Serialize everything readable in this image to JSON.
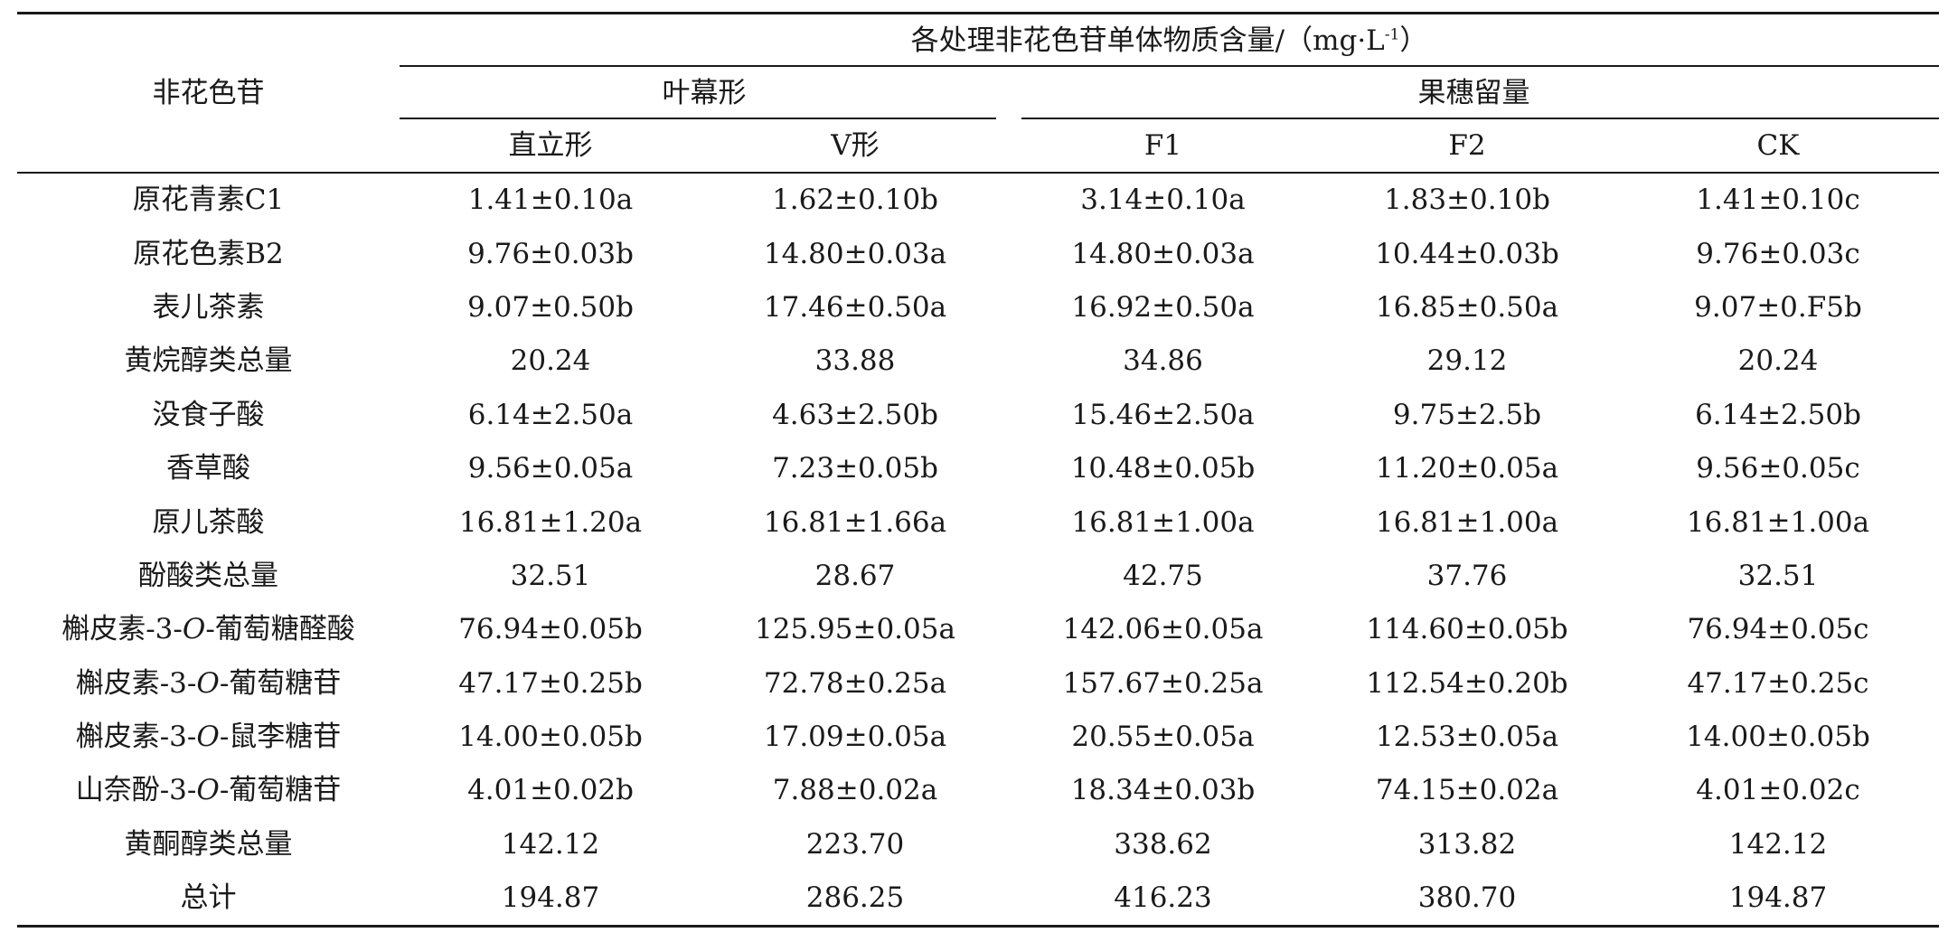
{
  "table": {
    "row_header_title": "非花色苷",
    "group_title": "各处理非花色苷单体物质含量/（mg·L",
    "group_title_sup": "-1",
    "group_title_end": "）",
    "subgroups": [
      {
        "label": "叶幕形"
      },
      {
        "label": "果穗留量"
      }
    ],
    "columns": [
      "直立形",
      "V形",
      "F1",
      "F2",
      "CK"
    ],
    "rows": [
      {
        "name_pre": "原花青素C1",
        "name_it": "",
        "name_post": "",
        "values": [
          "1.41±0.10a",
          "1.62±0.10b",
          "3.14±0.10a",
          "1.83±0.10b",
          "1.41±0.10c"
        ]
      },
      {
        "name_pre": "原花色素B2",
        "name_it": "",
        "name_post": "",
        "values": [
          "9.76±0.03b",
          "14.80±0.03a",
          "14.80±0.03a",
          "10.44±0.03b",
          "9.76±0.03c"
        ]
      },
      {
        "name_pre": "表儿茶素",
        "name_it": "",
        "name_post": "",
        "values": [
          "9.07±0.50b",
          "17.46±0.50a",
          "16.92±0.50a",
          "16.85±0.50a",
          "9.07±0.F5b"
        ]
      },
      {
        "name_pre": "黄烷醇类总量",
        "name_it": "",
        "name_post": "",
        "values": [
          "20.24",
          "33.88",
          "34.86",
          "29.12",
          "20.24"
        ]
      },
      {
        "name_pre": "没食子酸",
        "name_it": "",
        "name_post": "",
        "values": [
          "6.14±2.50a",
          "4.63±2.50b",
          "15.46±2.50a",
          "9.75±2.5b",
          "6.14±2.50b"
        ]
      },
      {
        "name_pre": "香草酸",
        "name_it": "",
        "name_post": "",
        "values": [
          "9.56±0.05a",
          "7.23±0.05b",
          "10.48±0.05b",
          "11.20±0.05a",
          "9.56±0.05c"
        ]
      },
      {
        "name_pre": "原儿茶酸",
        "name_it": "",
        "name_post": "",
        "values": [
          "16.81±1.20a",
          "16.81±1.66a",
          "16.81±1.00a",
          "16.81±1.00a",
          "16.81±1.00a"
        ]
      },
      {
        "name_pre": "酚酸类总量",
        "name_it": "",
        "name_post": "",
        "values": [
          "32.51",
          "28.67",
          "42.75",
          "37.76",
          "32.51"
        ]
      },
      {
        "name_pre": "槲皮素-3-",
        "name_it": "O",
        "name_post": "-葡萄糖醛酸",
        "values": [
          "76.94±0.05b",
          "125.95±0.05a",
          "142.06±0.05a",
          "114.60±0.05b",
          "76.94±0.05c"
        ]
      },
      {
        "name_pre": "槲皮素-3-",
        "name_it": "O",
        "name_post": "-葡萄糖苷",
        "values": [
          "47.17±0.25b",
          "72.78±0.25a",
          "157.67±0.25a",
          "112.54±0.20b",
          "47.17±0.25c"
        ]
      },
      {
        "name_pre": "槲皮素-3-",
        "name_it": "O",
        "name_post": "-鼠李糖苷",
        "values": [
          "14.00±0.05b",
          "17.09±0.05a",
          "20.55±0.05a",
          "12.53±0.05a",
          "14.00±0.05b"
        ]
      },
      {
        "name_pre": "山奈酚-3-",
        "name_it": "O",
        "name_post": "-葡萄糖苷",
        "values": [
          "4.01±0.02b",
          "7.88±0.02a",
          "18.34±0.03b",
          "74.15±0.02a",
          "4.01±0.02c"
        ]
      },
      {
        "name_pre": "黄酮醇类总量",
        "name_it": "",
        "name_post": "",
        "values": [
          "142.12",
          "223.70",
          "338.62",
          "313.82",
          "142.12"
        ]
      },
      {
        "name_pre": "总计",
        "name_it": "",
        "name_post": "",
        "values": [
          "194.87",
          "286.25",
          "416.23",
          "380.70",
          "194.87"
        ]
      }
    ]
  }
}
